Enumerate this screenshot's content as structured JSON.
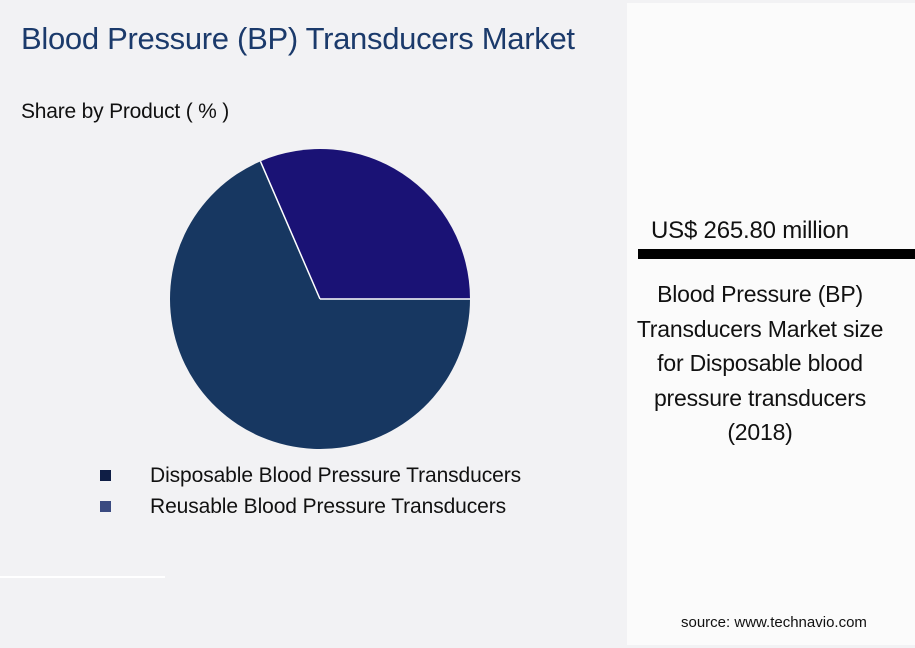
{
  "header": {
    "title": "Blood Pressure (BP) Transducers Market",
    "subtitle": "Share by Product ( % )"
  },
  "legend": [
    {
      "label": "Disposable Blood Pressure Transducers",
      "color": "#0f1e45"
    },
    {
      "label": "Reusable Blood Pressure Transducers",
      "color": "#3a4a80"
    }
  ],
  "panel": {
    "value": "US$ 265.80 million",
    "description": "Blood Pressure (BP) Transducers Market size for Disposable blood pressure transducers (2018)",
    "source": "source: www.technavio.com"
  },
  "colors": {
    "title": "#1b3a6b",
    "slice_large": "#173761",
    "slice_small": "#1a1275"
  },
  "chart_data": {
    "type": "pie",
    "title": "Blood Pressure (BP) Transducers Market",
    "subtitle": "Share by Product ( % )",
    "categories": [
      "Disposable Blood Pressure Transducers",
      "Reusable Blood Pressure Transducers"
    ],
    "values": [
      68.5,
      31.5
    ],
    "colors": [
      "#173761",
      "#1a1275"
    ],
    "start_angle_deg": 0,
    "legend_position": "bottom",
    "annotation": "US$ 265.80 million — Disposable blood pressure transducers (2018)"
  }
}
